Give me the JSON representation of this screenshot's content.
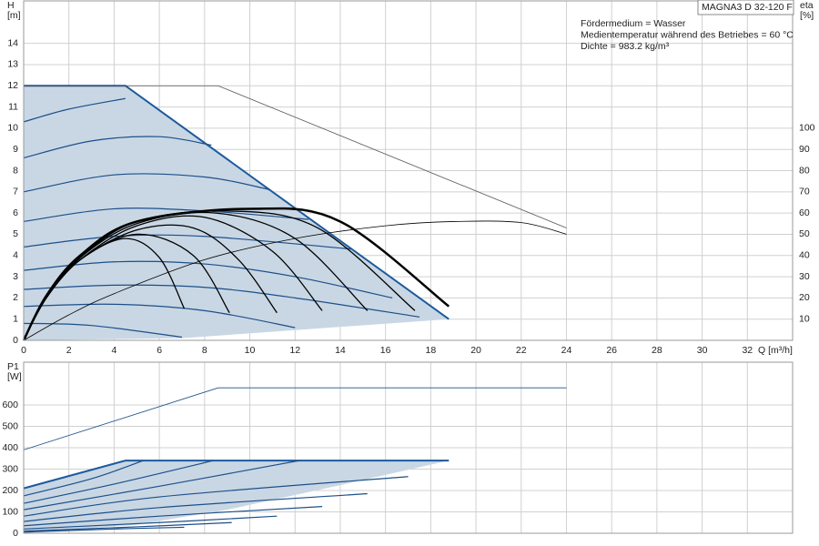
{
  "chart_data": [
    {
      "type": "line",
      "title": "MAGNA3 D 32-120 F",
      "annotations": [
        "Fördermedium = Wasser",
        "Medientemperatur während des Betriebes = 60 °C",
        "Dichte = 983.2 kg/m³"
      ],
      "ylabel": [
        "H",
        "[m]"
      ],
      "y2label": [
        "eta",
        "[%]"
      ],
      "xlabel": "Q [m³/h]",
      "xlim": [
        0,
        34
      ],
      "xticks": [
        0,
        2,
        4,
        6,
        8,
        10,
        12,
        14,
        16,
        18,
        20,
        22,
        24,
        26,
        28,
        30,
        32
      ],
      "ylim": [
        0,
        16
      ],
      "yticks": [
        0,
        1,
        2,
        3,
        4,
        5,
        6,
        7,
        8,
        9,
        10,
        11,
        12,
        13,
        14
      ],
      "y2lim": [
        0,
        160
      ],
      "y2ticks": [
        10,
        20,
        30,
        40,
        50,
        60,
        70,
        80,
        90,
        100
      ],
      "grid": true,
      "series": [
        {
          "kind": "area",
          "color": "#c9d7e4",
          "x": [
            0,
            4.5,
            18.8,
            7,
            0
          ],
          "values": [
            12,
            12,
            1,
            0.1,
            0
          ]
        },
        {
          "color": "#1c5a9c",
          "width": 2,
          "x": [
            0,
            4.5,
            18.8
          ],
          "values": [
            12,
            12,
            1
          ]
        },
        {
          "color": "#555555",
          "width": 0.8,
          "x": [
            0,
            8.6,
            24
          ],
          "values": [
            12,
            12,
            5.3
          ]
        },
        {
          "color": "#1c4f8a",
          "width": 1.2,
          "smooth": true,
          "x": [
            0,
            2,
            4.5
          ],
          "values": [
            10.3,
            10.9,
            11.4
          ]
        },
        {
          "color": "#1c4f8a",
          "width": 1.2,
          "smooth": true,
          "x": [
            0,
            3,
            6,
            8.3
          ],
          "values": [
            8.6,
            9.4,
            9.6,
            9.2
          ]
        },
        {
          "color": "#1c4f8a",
          "width": 1.2,
          "smooth": true,
          "x": [
            0,
            4,
            8,
            10.9
          ],
          "values": [
            7.0,
            7.8,
            7.7,
            7.1
          ]
        },
        {
          "color": "#1c4f8a",
          "width": 1.2,
          "smooth": true,
          "x": [
            0,
            4,
            8,
            12.6
          ],
          "values": [
            5.6,
            6.2,
            6.1,
            5.7
          ]
        },
        {
          "color": "#1c4f8a",
          "width": 1.2,
          "smooth": true,
          "x": [
            0,
            4,
            8,
            14.5
          ],
          "values": [
            4.4,
            4.9,
            4.9,
            4.3
          ]
        },
        {
          "color": "#1c4f8a",
          "width": 1.2,
          "smooth": true,
          "x": [
            0,
            4,
            8,
            12,
            16.3
          ],
          "values": [
            3.3,
            3.7,
            3.6,
            3.0,
            2.0
          ]
        },
        {
          "color": "#1c4f8a",
          "width": 1.2,
          "smooth": true,
          "x": [
            0,
            4,
            8,
            12,
            17.5
          ],
          "values": [
            2.4,
            2.6,
            2.5,
            2.0,
            1.1
          ]
        },
        {
          "color": "#1c4f8a",
          "width": 1.2,
          "smooth": true,
          "x": [
            0,
            4,
            8,
            12
          ],
          "values": [
            1.6,
            1.7,
            1.4,
            0.6
          ]
        },
        {
          "color": "#1c4f8a",
          "width": 1.2,
          "smooth": true,
          "x": [
            0,
            3,
            7
          ],
          "values": [
            0.8,
            0.7,
            0.15
          ]
        },
        {
          "color": "#000000",
          "width": 1.3,
          "smooth": true,
          "x": [
            0,
            1,
            2.5,
            4.5,
            6,
            7.1
          ],
          "values": [
            0,
            2.0,
            3.8,
            4.8,
            3.9,
            1.5
          ]
        },
        {
          "color": "#000000",
          "width": 1.3,
          "smooth": true,
          "x": [
            0,
            1,
            2.5,
            5,
            7.5,
            9.1
          ],
          "values": [
            0,
            2.0,
            3.8,
            5.0,
            4.0,
            1.3
          ]
        },
        {
          "color": "#000000",
          "width": 1.3,
          "smooth": true,
          "x": [
            0,
            1,
            2.5,
            5,
            7.5,
            9.5,
            11.2
          ],
          "values": [
            0,
            2.0,
            3.8,
            5.2,
            5.3,
            3.8,
            1.3
          ]
        },
        {
          "color": "#000000",
          "width": 1.3,
          "smooth": true,
          "x": [
            0,
            1,
            2.5,
            5,
            8,
            11,
            13.2
          ],
          "values": [
            0,
            2.0,
            3.8,
            5.4,
            5.8,
            4.2,
            1.4
          ]
        },
        {
          "color": "#000000",
          "width": 1.3,
          "smooth": true,
          "x": [
            0,
            1,
            2.5,
            5,
            8.5,
            12,
            15.2
          ],
          "values": [
            0,
            2.0,
            3.9,
            5.5,
            6.0,
            4.8,
            1.4
          ]
        },
        {
          "color": "#000000",
          "width": 1.3,
          "smooth": true,
          "x": [
            0,
            1,
            2.5,
            5,
            9,
            13,
            17.3
          ],
          "values": [
            0,
            2.0,
            3.9,
            5.6,
            6.1,
            5.3,
            1.4
          ]
        },
        {
          "color": "#000000",
          "width": 2.5,
          "smooth": true,
          "x": [
            0,
            1,
            2.5,
            5,
            10,
            14,
            18.8
          ],
          "values": [
            0,
            2.1,
            4.0,
            5.6,
            6.2,
            5.6,
            1.6
          ]
        },
        {
          "color": "#000000",
          "width": 0.8,
          "smooth": true,
          "axis": "y2",
          "x": [
            0,
            2,
            4,
            8,
            12,
            16,
            19,
            22,
            24
          ],
          "values": [
            0,
            12,
            22,
            38,
            48,
            54,
            56,
            55.5,
            50
          ]
        }
      ]
    },
    {
      "type": "line",
      "ylabel": [
        "P1",
        "[W]"
      ],
      "xlim": [
        0,
        34
      ],
      "ylim": [
        0,
        800
      ],
      "yticks": [
        0,
        100,
        200,
        300,
        400,
        500,
        600
      ],
      "grid": true,
      "series": [
        {
          "kind": "area",
          "color": "#c9d7e4",
          "x": [
            0,
            4.5,
            18.8,
            14,
            9,
            5,
            0
          ],
          "values": [
            210,
            340,
            340,
            225,
            110,
            40,
            0
          ]
        },
        {
          "color": "#1c4f8a",
          "width": 0.8,
          "x": [
            0,
            8.6,
            24
          ],
          "values": [
            390,
            680,
            680
          ]
        },
        {
          "color": "#1c5a9c",
          "width": 2,
          "x": [
            0,
            4.5,
            18.8
          ],
          "values": [
            210,
            340,
            340
          ]
        },
        {
          "color": "#1c4f8a",
          "width": 1.2,
          "smooth": true,
          "x": [
            0,
            3,
            5.3
          ],
          "values": [
            175,
            255,
            340
          ]
        },
        {
          "color": "#1c4f8a",
          "width": 1.2,
          "smooth": true,
          "x": [
            0,
            4,
            8.4
          ],
          "values": [
            140,
            230,
            340
          ]
        },
        {
          "color": "#1c4f8a",
          "width": 1.2,
          "smooth": true,
          "x": [
            0,
            6,
            12.2
          ],
          "values": [
            110,
            220,
            340
          ]
        },
        {
          "color": "#1c4f8a",
          "width": 1.2,
          "smooth": true,
          "x": [
            0,
            6,
            17
          ],
          "values": [
            80,
            170,
            265
          ]
        },
        {
          "color": "#1c4f8a",
          "width": 1.2,
          "smooth": true,
          "x": [
            0,
            6,
            15.2
          ],
          "values": [
            55,
            120,
            185
          ]
        },
        {
          "color": "#1c4f8a",
          "width": 1.2,
          "smooth": true,
          "x": [
            0,
            6,
            13.2
          ],
          "values": [
            35,
            80,
            125
          ]
        },
        {
          "color": "#1c4f8a",
          "width": 1.2,
          "smooth": true,
          "x": [
            0,
            6,
            11.2
          ],
          "values": [
            20,
            50,
            80
          ]
        },
        {
          "color": "#1c4f8a",
          "width": 1.2,
          "smooth": true,
          "x": [
            0,
            5,
            9.2
          ],
          "values": [
            10,
            30,
            50
          ]
        },
        {
          "color": "#1c4f8a",
          "width": 1.2,
          "smooth": true,
          "x": [
            0,
            4,
            7.1
          ],
          "values": [
            5,
            20,
            28
          ]
        }
      ]
    }
  ]
}
